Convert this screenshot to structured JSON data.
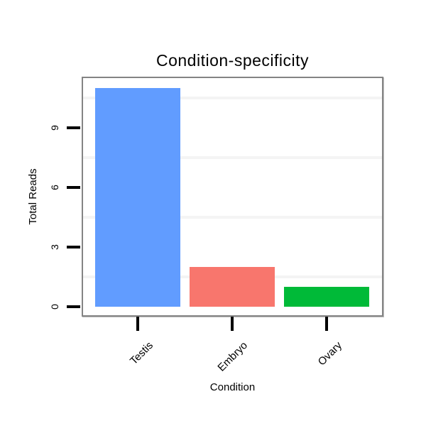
{
  "chart_data": {
    "type": "bar",
    "title": "Condition-specificity",
    "xlabel": "Condition",
    "ylabel": "Total Reads",
    "categories": [
      "Testis",
      "Embryo",
      "Ovary"
    ],
    "values": [
      11,
      2,
      1
    ],
    "bar_colors": [
      "#619CFF",
      "#F8766D",
      "#00BA38"
    ],
    "yticks": [
      0,
      3,
      6,
      9
    ],
    "ylim": [
      -0.45,
      11.5
    ],
    "minor_gridlines": [
      1.5,
      4.5,
      7.5,
      10.5
    ],
    "grid": "faint horizontal minor gridlines only",
    "legend": "none",
    "panel_border_color": "#848484",
    "gridline_color": "#f4f4f4",
    "tick_color": "#000000",
    "text_color": "#000000",
    "background_color": "#ffffff"
  }
}
